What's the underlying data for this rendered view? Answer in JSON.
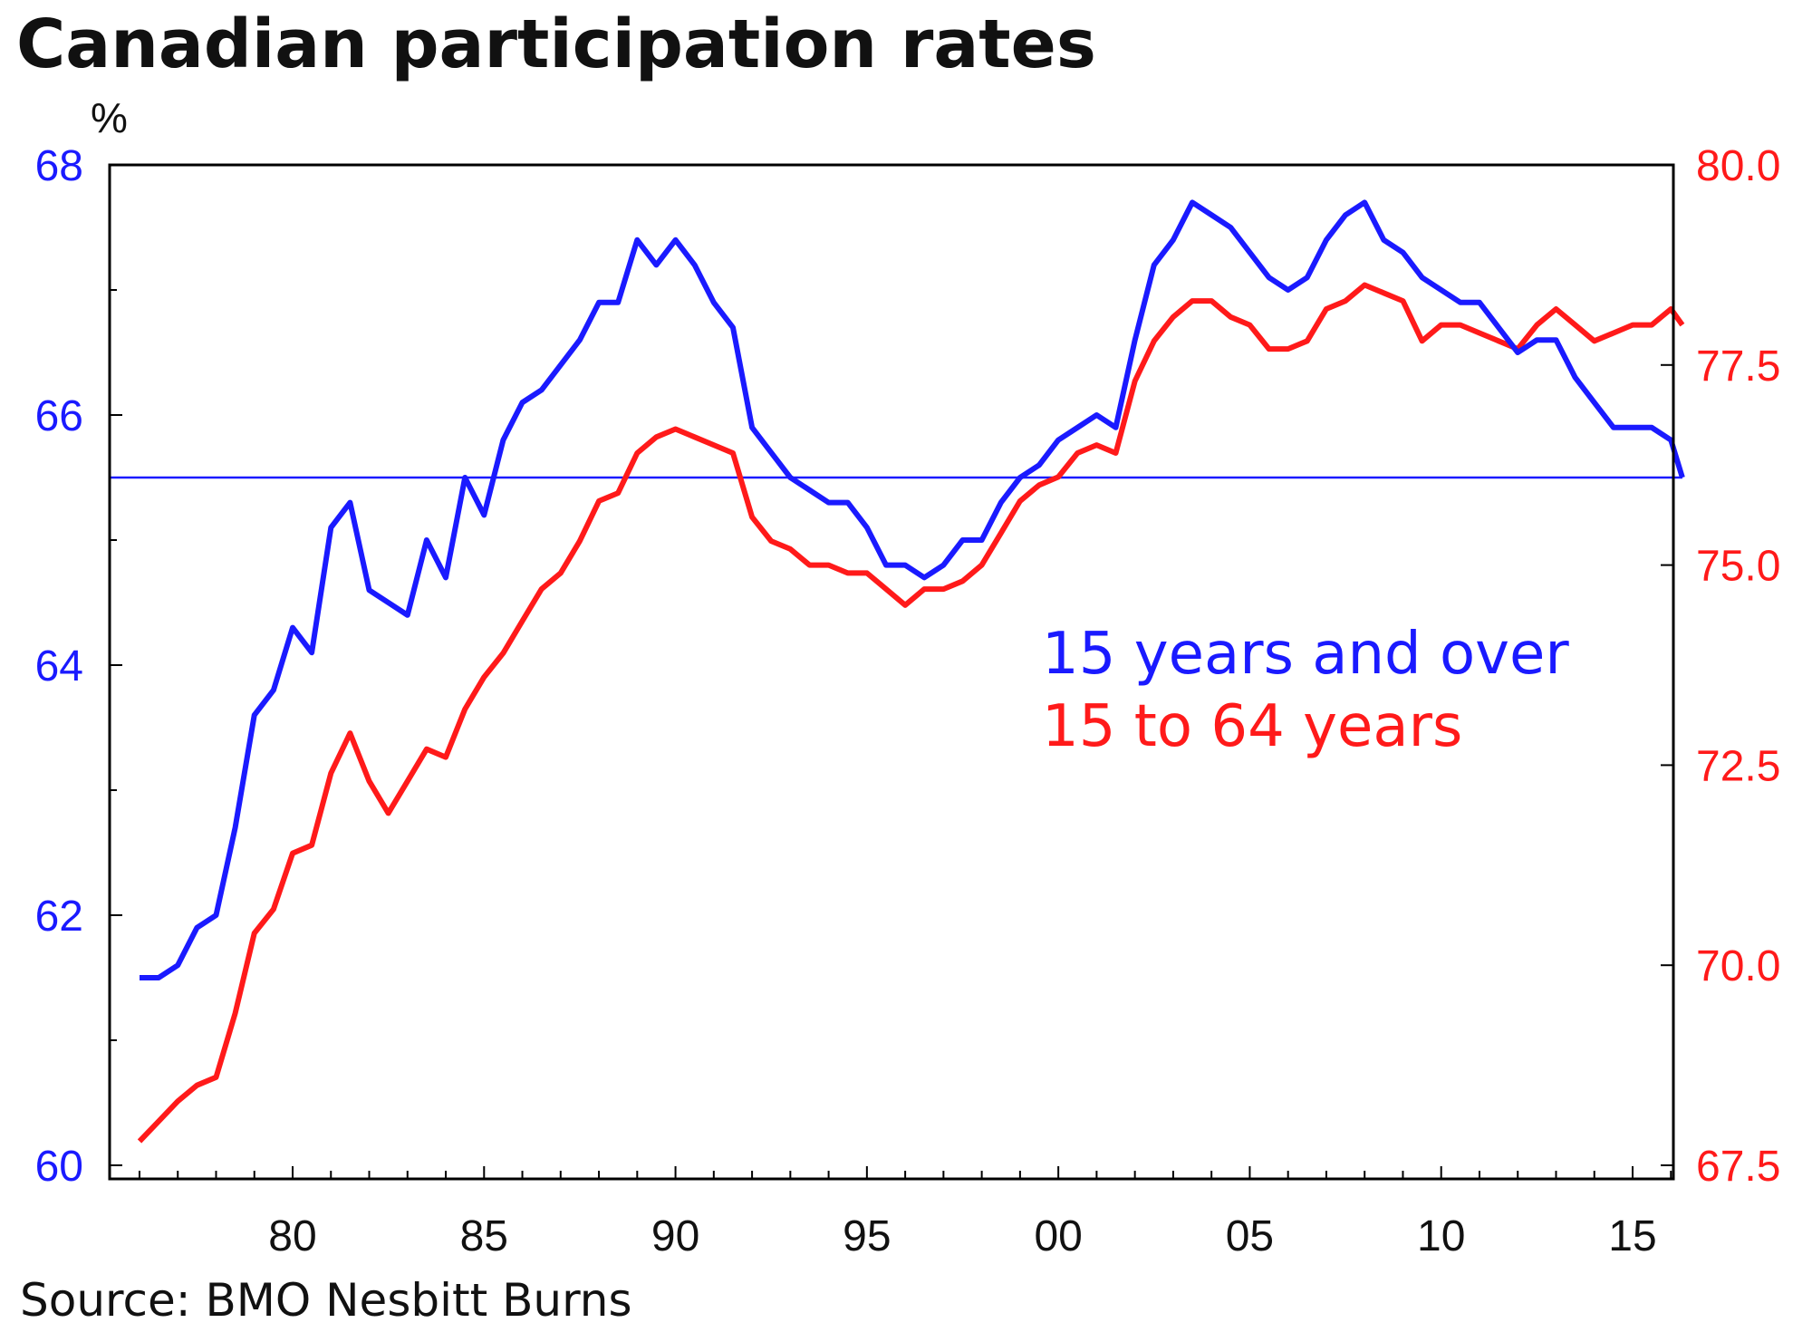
{
  "chart_data": {
    "type": "line",
    "title": "Canadian participation rates",
    "ylabel": "%",
    "source": "Source: BMO Nesbitt Burns",
    "xlim": [
      1975.8,
      2016.5
    ],
    "x_ticks": [
      1980,
      1985,
      1990,
      1995,
      2000,
      2005,
      2010,
      2015
    ],
    "x_tick_labels": [
      "80",
      "85",
      "90",
      "95",
      "00",
      "05",
      "10",
      "15"
    ],
    "y_left": {
      "lim": [
        60,
        68
      ],
      "ticks": [
        60,
        62,
        64,
        66,
        68
      ],
      "tick_labels": [
        "60",
        "62",
        "64",
        "66",
        "68"
      ],
      "color": "#1a1aff"
    },
    "y_right": {
      "lim": [
        67.5,
        80
      ],
      "ticks": [
        67.5,
        70,
        72.5,
        75,
        77.5,
        80
      ],
      "tick_labels": [
        "67.5",
        "70.0",
        "72.5",
        "75.0",
        "77.5",
        "80.0"
      ],
      "color": "#ff1a1a"
    },
    "reference_line": {
      "axis": "left",
      "value": 65.5,
      "color": "#1a1aff"
    },
    "series": [
      {
        "name": "15 years and over",
        "axis": "left",
        "color": "#1a1aff",
        "x": [
          1976,
          1976.5,
          1977,
          1977.5,
          1978,
          1978.5,
          1979,
          1979.5,
          1980,
          1980.5,
          1981,
          1981.5,
          1982,
          1982.5,
          1983,
          1983.5,
          1984,
          1984.5,
          1985,
          1985.5,
          1986,
          1986.5,
          1987,
          1987.5,
          1988,
          1988.5,
          1989,
          1989.5,
          1990,
          1990.5,
          1991,
          1991.5,
          1992,
          1992.5,
          1993,
          1993.5,
          1994,
          1994.5,
          1995,
          1995.5,
          1996,
          1996.5,
          1997,
          1997.5,
          1998,
          1998.5,
          1999,
          1999.5,
          2000,
          2000.5,
          2001,
          2001.5,
          2002,
          2002.5,
          2003,
          2003.5,
          2004,
          2004.5,
          2005,
          2005.5,
          2006,
          2006.5,
          2007,
          2007.5,
          2008,
          2008.5,
          2009,
          2009.5,
          2010,
          2010.5,
          2011,
          2011.5,
          2012,
          2012.5,
          2013,
          2013.5,
          2014,
          2014.5,
          2015,
          2015.5,
          2016,
          2016.3
        ],
        "values": [
          61.5,
          61.5,
          61.6,
          61.9,
          62.0,
          62.7,
          63.6,
          63.8,
          64.3,
          64.1,
          65.1,
          65.3,
          64.6,
          64.5,
          64.4,
          65.0,
          64.7,
          65.5,
          65.2,
          65.8,
          66.1,
          66.2,
          66.4,
          66.6,
          66.9,
          66.9,
          67.4,
          67.2,
          67.4,
          67.2,
          66.9,
          66.7,
          65.9,
          65.7,
          65.5,
          65.4,
          65.3,
          65.3,
          65.1,
          64.8,
          64.8,
          64.7,
          64.8,
          65.0,
          65.0,
          65.3,
          65.5,
          65.6,
          65.8,
          65.9,
          66.0,
          65.9,
          66.6,
          67.2,
          67.4,
          67.7,
          67.6,
          67.5,
          67.3,
          67.1,
          67.0,
          67.1,
          67.4,
          67.6,
          67.7,
          67.4,
          67.3,
          67.1,
          67.0,
          66.9,
          66.9,
          66.7,
          66.5,
          66.6,
          66.6,
          66.3,
          66.1,
          65.9,
          65.9,
          65.9,
          65.8,
          65.5
        ]
      },
      {
        "name": "15 to 64 years",
        "axis": "right",
        "color": "#ff1a1a",
        "x": [
          1976,
          1976.5,
          1977,
          1977.5,
          1978,
          1978.5,
          1979,
          1979.5,
          1980,
          1980.5,
          1981,
          1981.5,
          1982,
          1982.5,
          1983,
          1983.5,
          1984,
          1984.5,
          1985,
          1985.5,
          1986,
          1986.5,
          1987,
          1987.5,
          1988,
          1988.5,
          1989,
          1989.5,
          1990,
          1990.5,
          1991,
          1991.5,
          1992,
          1992.5,
          1993,
          1993.5,
          1994,
          1994.5,
          1995,
          1995.5,
          1996,
          1996.5,
          1997,
          1997.5,
          1998,
          1998.5,
          1999,
          1999.5,
          2000,
          2000.5,
          2001,
          2001.5,
          2002,
          2002.5,
          2003,
          2003.5,
          2004,
          2004.5,
          2005,
          2005.5,
          2006,
          2006.5,
          2007,
          2007.5,
          2008,
          2008.5,
          2009,
          2009.5,
          2010,
          2010.5,
          2011,
          2011.5,
          2012,
          2012.5,
          2013,
          2013.5,
          2014,
          2014.5,
          2015,
          2015.5,
          2016,
          2016.3
        ],
        "values": [
          67.8,
          68.05,
          68.3,
          68.5,
          68.6,
          69.4,
          70.4,
          70.7,
          71.4,
          71.5,
          72.4,
          72.9,
          72.3,
          71.9,
          72.3,
          72.7,
          72.6,
          73.2,
          73.6,
          73.9,
          74.3,
          74.7,
          74.9,
          75.3,
          75.8,
          75.9,
          76.4,
          76.6,
          76.7,
          76.6,
          76.5,
          76.4,
          75.6,
          75.3,
          75.2,
          75.0,
          75.0,
          74.9,
          74.9,
          74.7,
          74.5,
          74.7,
          74.7,
          74.8,
          75.0,
          75.4,
          75.8,
          76.0,
          76.1,
          76.4,
          76.5,
          76.4,
          77.3,
          77.8,
          78.1,
          78.3,
          78.3,
          78.1,
          78.0,
          77.7,
          77.7,
          77.8,
          78.2,
          78.3,
          78.5,
          78.4,
          78.3,
          77.8,
          78.0,
          78.0,
          77.9,
          77.8,
          77.7,
          78.0,
          78.2,
          78.0,
          77.8,
          77.9,
          78.0,
          78.0,
          78.2,
          78.0
        ]
      }
    ]
  }
}
